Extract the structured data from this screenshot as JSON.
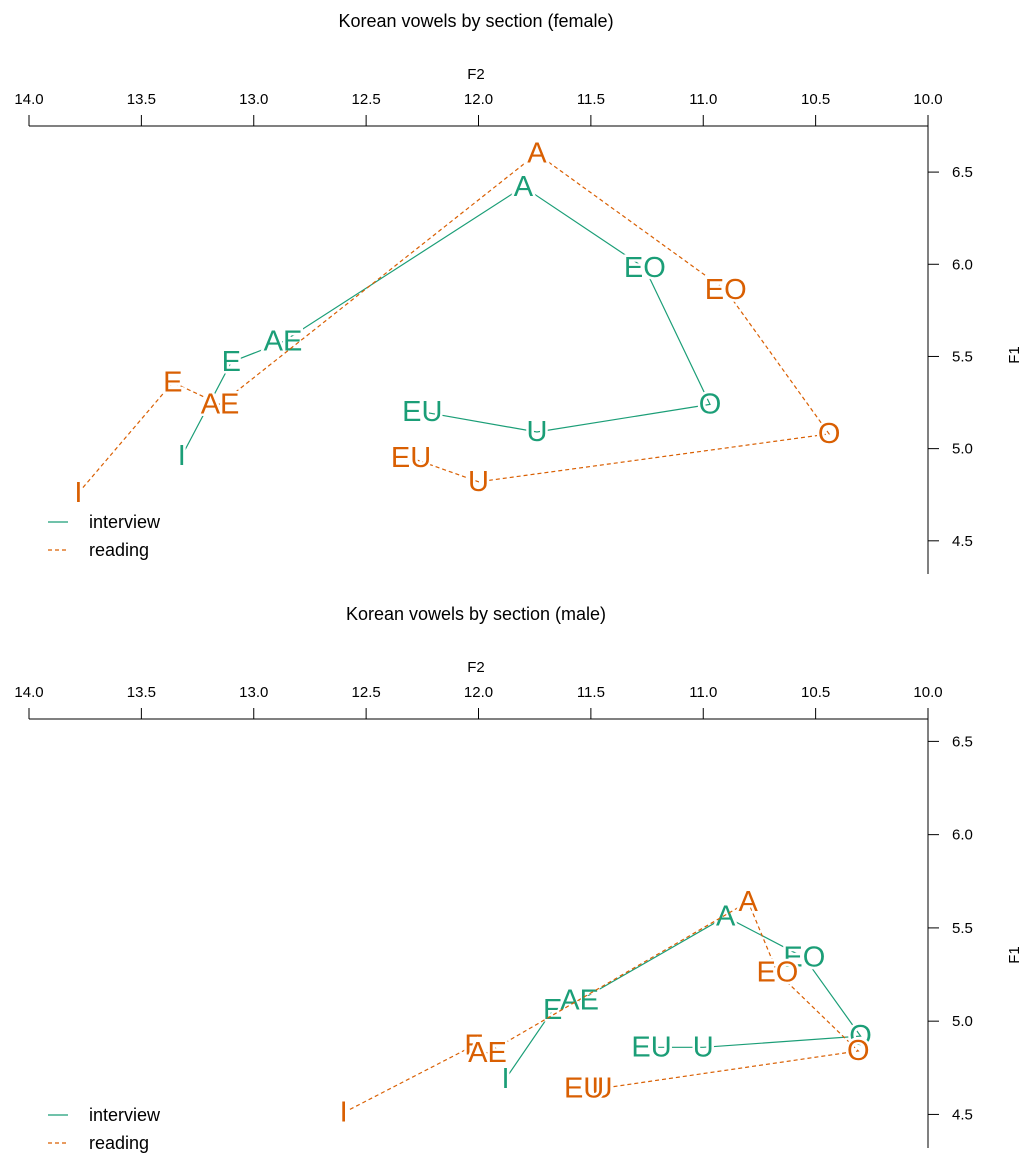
{
  "colors": {
    "interview": "#1b9e77",
    "reading": "#d95f02"
  },
  "chart_data": [
    {
      "type": "line",
      "title": "Korean vowels by section (female)",
      "xlabel": "F2",
      "ylabel": "F1",
      "xlim": [
        14.0,
        10.0
      ],
      "ylim": [
        6.75,
        4.32
      ],
      "x_ticks": [
        "14.0",
        "13.5",
        "13.0",
        "12.5",
        "12.0",
        "11.5",
        "11.0",
        "10.5",
        "10.0"
      ],
      "y_ticks": [
        "4.5",
        "5.0",
        "5.5",
        "6.0",
        "6.5"
      ],
      "grid": false,
      "legend_position": "bottom-left",
      "series": [
        {
          "name": "interview",
          "line_style": "solid",
          "order": [
            "I",
            "E",
            "AE",
            "A",
            "EO",
            "O",
            "U",
            "EU"
          ],
          "points": [
            {
              "label": "I",
              "x": 13.32,
              "y": 4.96
            },
            {
              "label": "E",
              "x": 13.1,
              "y": 5.47
            },
            {
              "label": "AE",
              "x": 12.87,
              "y": 5.58
            },
            {
              "label": "A",
              "x": 11.8,
              "y": 6.42
            },
            {
              "label": "EO",
              "x": 11.26,
              "y": 5.98
            },
            {
              "label": "O",
              "x": 10.97,
              "y": 5.24
            },
            {
              "label": "U",
              "x": 11.74,
              "y": 5.09
            },
            {
              "label": "EU",
              "x": 12.25,
              "y": 5.2
            }
          ]
        },
        {
          "name": "reading",
          "line_style": "dashed",
          "order": [
            "I",
            "E",
            "AE",
            "A",
            "EO",
            "O",
            "U",
            "EU"
          ],
          "points": [
            {
              "label": "I",
              "x": 13.78,
              "y": 4.76
            },
            {
              "label": "E",
              "x": 13.36,
              "y": 5.36
            },
            {
              "label": "AE",
              "x": 13.15,
              "y": 5.24
            },
            {
              "label": "A",
              "x": 11.74,
              "y": 6.6
            },
            {
              "label": "EO",
              "x": 10.9,
              "y": 5.86
            },
            {
              "label": "O",
              "x": 10.44,
              "y": 5.08
            },
            {
              "label": "U",
              "x": 12.0,
              "y": 4.82
            },
            {
              "label": "EU",
              "x": 12.3,
              "y": 4.95
            }
          ]
        }
      ]
    },
    {
      "type": "line",
      "title": "Korean vowels by section (male)",
      "xlabel": "F2",
      "ylabel": "F1",
      "xlim": [
        14.0,
        10.0
      ],
      "ylim": [
        6.62,
        4.32
      ],
      "x_ticks": [
        "14.0",
        "13.5",
        "13.0",
        "12.5",
        "12.0",
        "11.5",
        "11.0",
        "10.5",
        "10.0"
      ],
      "y_ticks": [
        "4.5",
        "5.0",
        "5.5",
        "6.0",
        "6.5"
      ],
      "grid": false,
      "legend_position": "bottom-left",
      "series": [
        {
          "name": "interview",
          "line_style": "solid",
          "order": [
            "I",
            "E",
            "AE",
            "A",
            "EO",
            "O",
            "U",
            "EU"
          ],
          "points": [
            {
              "label": "I",
              "x": 11.88,
              "y": 4.69
            },
            {
              "label": "E",
              "x": 11.67,
              "y": 5.06
            },
            {
              "label": "AE",
              "x": 11.55,
              "y": 5.11
            },
            {
              "label": "A",
              "x": 10.9,
              "y": 5.56
            },
            {
              "label": "EO",
              "x": 10.55,
              "y": 5.34
            },
            {
              "label": "O",
              "x": 10.3,
              "y": 4.92
            },
            {
              "label": "U",
              "x": 11.0,
              "y": 4.86
            },
            {
              "label": "EU",
              "x": 11.23,
              "y": 4.86
            }
          ]
        },
        {
          "name": "reading",
          "line_style": "dashed",
          "order": [
            "I",
            "E",
            "AE",
            "A",
            "EO",
            "O",
            "U",
            "EU"
          ],
          "points": [
            {
              "label": "I",
              "x": 12.6,
              "y": 4.51
            },
            {
              "label": "E",
              "x": 12.02,
              "y": 4.87
            },
            {
              "label": "AE",
              "x": 11.96,
              "y": 4.83
            },
            {
              "label": "A",
              "x": 10.8,
              "y": 5.64
            },
            {
              "label": "EO",
              "x": 10.67,
              "y": 5.26
            },
            {
              "label": "O",
              "x": 10.31,
              "y": 4.84
            },
            {
              "label": "U",
              "x": 11.45,
              "y": 4.64
            },
            {
              "label": "EU",
              "x": 11.53,
              "y": 4.64
            }
          ]
        }
      ]
    }
  ]
}
